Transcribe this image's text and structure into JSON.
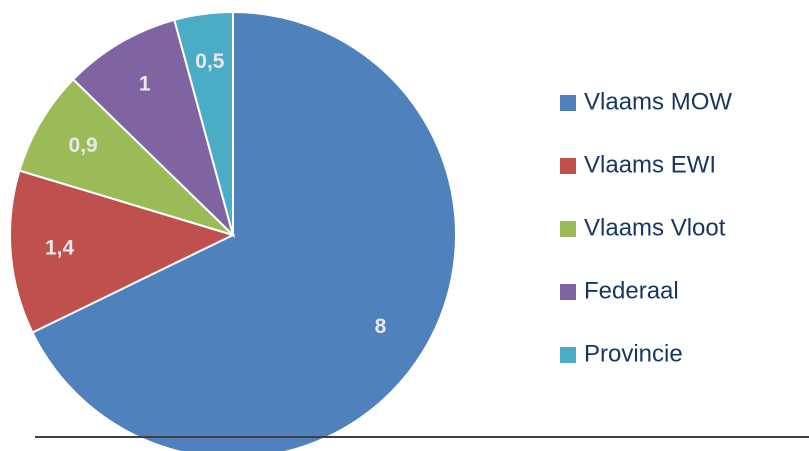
{
  "chart_data": {
    "type": "pie",
    "categories": [
      "Vlaams MOW",
      "Vlaams EWI",
      "Vlaams Vloot",
      "Federaal",
      "Provincie"
    ],
    "values": [
      8,
      1.4,
      0.9,
      1,
      0.5
    ],
    "value_labels": [
      "8",
      "1,4",
      "0,9",
      "1",
      "0,5"
    ],
    "colors": [
      "#4f81bd",
      "#c0504d",
      "#9bbb59",
      "#8064a2",
      "#4bacc6"
    ],
    "legend": "right"
  }
}
